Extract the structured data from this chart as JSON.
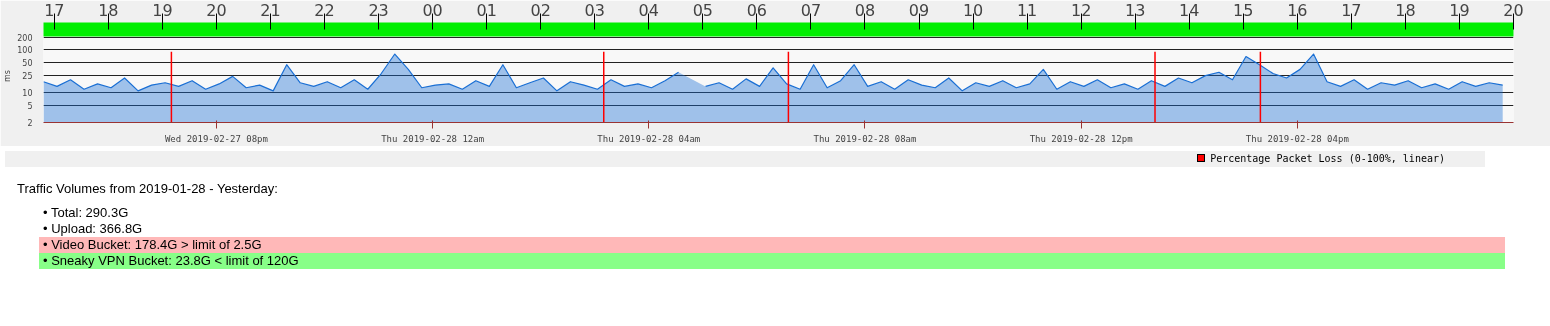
{
  "chart_data": {
    "type": "area",
    "ylabel": "ms",
    "x": [
      "2019-02-27T16:48",
      "2019-02-27T17:03",
      "2019-02-27T17:18",
      "2019-02-27T17:33",
      "2019-02-27T17:48",
      "2019-02-27T18:03",
      "2019-02-27T18:18",
      "2019-02-27T18:33",
      "2019-02-27T18:48",
      "2019-02-27T19:03",
      "2019-02-27T19:18",
      "2019-02-27T19:33",
      "2019-02-27T19:48",
      "2019-02-27T20:03",
      "2019-02-27T20:18",
      "2019-02-27T20:33",
      "2019-02-27T20:48",
      "2019-02-27T21:03",
      "2019-02-27T21:18",
      "2019-02-27T21:33",
      "2019-02-27T21:48",
      "2019-02-27T22:03",
      "2019-02-27T22:18",
      "2019-02-27T22:33",
      "2019-02-27T22:48",
      "2019-02-27T23:03",
      "2019-02-27T23:18",
      "2019-02-27T23:33",
      "2019-02-27T23:48",
      "2019-02-28T00:03",
      "2019-02-28T00:18",
      "2019-02-28T00:33",
      "2019-02-28T00:48",
      "2019-02-28T01:03",
      "2019-02-28T01:18",
      "2019-02-28T01:33",
      "2019-02-28T01:48",
      "2019-02-28T02:03",
      "2019-02-28T02:18",
      "2019-02-28T02:33",
      "2019-02-28T02:48",
      "2019-02-28T03:03",
      "2019-02-28T03:18",
      "2019-02-28T03:33",
      "2019-02-28T03:48",
      "2019-02-28T04:03",
      "2019-02-28T04:18",
      "2019-02-28T04:33",
      "2019-02-28T04:48",
      "2019-02-28T05:03",
      "2019-02-28T05:18",
      "2019-02-28T05:33",
      "2019-02-28T05:48",
      "2019-02-28T06:03",
      "2019-02-28T06:18",
      "2019-02-28T06:33",
      "2019-02-28T06:48",
      "2019-02-28T07:03",
      "2019-02-28T07:18",
      "2019-02-28T07:33",
      "2019-02-28T07:48",
      "2019-02-28T08:03",
      "2019-02-28T08:18",
      "2019-02-28T08:33",
      "2019-02-28T08:48",
      "2019-02-28T09:03",
      "2019-02-28T09:18",
      "2019-02-28T09:33",
      "2019-02-28T09:48",
      "2019-02-28T10:03",
      "2019-02-28T10:18",
      "2019-02-28T10:33",
      "2019-02-28T10:48",
      "2019-02-28T11:03",
      "2019-02-28T11:18",
      "2019-02-28T11:33",
      "2019-02-28T11:48",
      "2019-02-28T12:03",
      "2019-02-28T12:18",
      "2019-02-28T12:33",
      "2019-02-28T12:48",
      "2019-02-28T13:03",
      "2019-02-28T13:18",
      "2019-02-28T13:33",
      "2019-02-28T13:48",
      "2019-02-28T14:03",
      "2019-02-28T14:18",
      "2019-02-28T14:33",
      "2019-02-28T14:48",
      "2019-02-28T15:03",
      "2019-02-28T15:18",
      "2019-02-28T15:33",
      "2019-02-28T15:48",
      "2019-02-28T16:03",
      "2019-02-28T16:18",
      "2019-02-28T16:33",
      "2019-02-28T16:48",
      "2019-02-28T17:03",
      "2019-02-28T17:18",
      "2019-02-28T17:33",
      "2019-02-28T17:48",
      "2019-02-28T18:03",
      "2019-02-28T18:18",
      "2019-02-28T18:33",
      "2019-02-28T18:48",
      "2019-02-28T19:03",
      "2019-02-28T19:18",
      "2019-02-28T19:33",
      "2019-02-28T19:48"
    ],
    "series": [
      {
        "color": "#1a6fd4",
        "values": [
          18,
          14,
          20,
          12,
          16,
          13,
          22,
          11,
          15,
          17,
          14,
          19,
          12,
          16,
          24,
          13,
          15,
          11,
          45,
          17,
          14,
          18,
          13,
          20,
          12,
          28,
          80,
          35,
          13,
          15,
          16,
          12,
          19,
          14,
          45,
          13,
          17,
          22,
          11,
          18,
          15,
          12,
          20,
          14,
          16,
          13,
          19,
          30,
          null,
          14,
          17,
          12,
          21,
          14,
          38,
          16,
          12,
          45,
          13,
          19,
          45,
          14,
          18,
          12,
          20,
          15,
          13,
          22,
          11,
          17,
          14,
          19,
          13,
          16,
          35,
          12,
          18,
          14,
          20,
          13,
          16,
          12,
          19,
          14,
          22,
          17,
          25,
          30,
          20,
          70,
          45,
          28,
          22,
          35,
          80,
          18,
          14,
          20,
          12,
          17,
          15,
          19,
          13,
          16,
          12,
          18,
          14,
          17,
          15
        ]
      }
    ],
    "xlim": [
      "2019-02-27T16:48",
      "2019-02-28T20:00"
    ],
    "xticks": [
      {
        "value": "2019-02-27T20:00",
        "label": "Wed 2019-02-27 08pm"
      },
      {
        "value": "2019-02-28T00:00",
        "label": "Thu 2019-02-28 12am"
      },
      {
        "value": "2019-02-28T04:00",
        "label": "Thu 2019-02-28 04am"
      },
      {
        "value": "2019-02-28T08:00",
        "label": "Thu 2019-02-28 08am"
      },
      {
        "value": "2019-02-28T12:00",
        "label": "Thu 2019-02-28 12pm"
      },
      {
        "value": "2019-02-28T16:00",
        "label": "Thu 2019-02-28 04pm"
      }
    ],
    "x2lim": [
      "2019-02-27T16:48",
      "2019-02-28T20:00"
    ],
    "x2ticks": [
      {
        "value": "2019-02-27T17:00",
        "label": "17"
      },
      {
        "value": "2019-02-27T18:00",
        "label": "18"
      },
      {
        "value": "2019-02-27T19:00",
        "label": "19"
      },
      {
        "value": "2019-02-27T20:00",
        "label": "20"
      },
      {
        "value": "2019-02-27T21:00",
        "label": "21"
      },
      {
        "value": "2019-02-27T22:00",
        "label": "22"
      },
      {
        "value": "2019-02-27T23:00",
        "label": "23"
      },
      {
        "value": "2019-02-28T00:00",
        "label": "00"
      },
      {
        "value": "2019-02-28T01:00",
        "label": "01"
      },
      {
        "value": "2019-02-28T02:00",
        "label": "02"
      },
      {
        "value": "2019-02-28T03:00",
        "label": "03"
      },
      {
        "value": "2019-02-28T04:00",
        "label": "04"
      },
      {
        "value": "2019-02-28T05:00",
        "label": "05"
      },
      {
        "value": "2019-02-28T06:00",
        "label": "06"
      },
      {
        "value": "2019-02-28T07:00",
        "label": "07"
      },
      {
        "value": "2019-02-28T08:00",
        "label": "08"
      },
      {
        "value": "2019-02-28T09:00",
        "label": "09"
      },
      {
        "value": "2019-02-28T10:00",
        "label": "10"
      },
      {
        "value": "2019-02-28T11:00",
        "label": "11"
      },
      {
        "value": "2019-02-28T12:00",
        "label": "12"
      },
      {
        "value": "2019-02-28T13:00",
        "label": "13"
      },
      {
        "value": "2019-02-28T14:00",
        "label": "14"
      },
      {
        "value": "2019-02-28T15:00",
        "label": "15"
      },
      {
        "value": "2019-02-28T16:00",
        "label": "16"
      },
      {
        "value": "2019-02-28T17:00",
        "label": "17"
      },
      {
        "value": "2019-02-28T18:00",
        "label": "18"
      },
      {
        "value": "2019-02-28T19:00",
        "label": "19"
      },
      {
        "value": "2019-02-28T20:00",
        "label": "20"
      }
    ],
    "ylim": [
      2,
      300
    ],
    "yticks": [
      2,
      5,
      10,
      25,
      50,
      100,
      200
    ],
    "log": "y",
    "grid": "y",
    "ref_lines": [
      {
        "axis": "x",
        "value": "2019-02-27T19:10",
        "color": "#ff0000"
      },
      {
        "axis": "x",
        "value": "2019-02-28T03:10",
        "color": "#ff0000"
      },
      {
        "axis": "x",
        "value": "2019-02-28T06:35",
        "color": "#ff0000"
      },
      {
        "axis": "x",
        "value": "2019-02-28T13:22",
        "color": "#ff0000"
      },
      {
        "axis": "x",
        "value": "2019-02-28T15:19",
        "color": "#ff0000"
      }
    ],
    "annotations": [
      "Percentage Packet Loss (0-100%, linear)",
      "Traffic Volumes from 2019-01-28 - Yesterday:",
      "• Total: 290.3G",
      "• Upload: 366.8G",
      "• Video Bucket: 178.4G > limit of 2.5G",
      "• Sneaky VPN Bucket: 23.8G < limit of 120G"
    ]
  }
}
